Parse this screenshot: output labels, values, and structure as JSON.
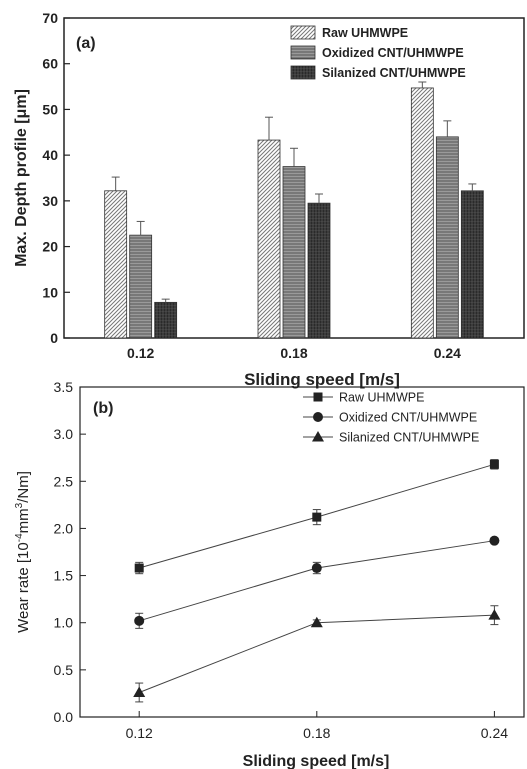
{
  "chart_data": [
    {
      "type": "bar",
      "panel_label": "(a)",
      "title": "",
      "xlabel": "Sliding speed [m/s]",
      "ylabel": "Max. Depth profile [μm]",
      "categories": [
        "0.12",
        "0.18",
        "0.24"
      ],
      "ylim": [
        0,
        70
      ],
      "yticks": [
        0,
        10,
        20,
        30,
        40,
        50,
        60,
        70
      ],
      "legend_position": "top-right",
      "grid": false,
      "series": [
        {
          "name": "Raw UHMWPE",
          "values": [
            32.2,
            43.3,
            54.7
          ],
          "errors": [
            3.0,
            5.0,
            1.3
          ],
          "pattern": "diagonal-hatch"
        },
        {
          "name": "Oxidized CNT/UHMWPE",
          "values": [
            22.5,
            37.5,
            44.0
          ],
          "errors": [
            3.0,
            4.0,
            3.5
          ],
          "pattern": "horizontal-lines"
        },
        {
          "name": "Silanized CNT/UHMWPE",
          "values": [
            7.8,
            29.5,
            32.2
          ],
          "errors": [
            0.7,
            2.0,
            1.5
          ],
          "pattern": "dense-grid"
        }
      ]
    },
    {
      "type": "line",
      "panel_label": "(b)",
      "title": "",
      "xlabel": "Sliding speed [m/s]",
      "ylabel_main": "Wear rate [10",
      "ylabel_exp1": "-4",
      "ylabel_mid": "mm",
      "ylabel_exp2": "3",
      "ylabel_tail": "/Nm]",
      "x": [
        0.12,
        0.18,
        0.24
      ],
      "xtick_labels": [
        "0.12",
        "0.18",
        "0.24"
      ],
      "xlim": [
        0.1,
        0.25
      ],
      "ylim": [
        0.0,
        3.5
      ],
      "yticks": [
        "0.0",
        "0.5",
        "1.0",
        "1.5",
        "2.0",
        "2.5",
        "3.0",
        "3.5"
      ],
      "legend_position": "top-right",
      "grid": false,
      "series": [
        {
          "name": "Raw UHMWPE",
          "marker": "square",
          "values": [
            1.58,
            2.12,
            2.68
          ],
          "errors": [
            0.06,
            0.08,
            0.05
          ]
        },
        {
          "name": "Oxidized CNT/UHMWPE",
          "marker": "circle",
          "values": [
            1.02,
            1.58,
            1.87
          ],
          "errors": [
            0.08,
            0.06,
            0.0
          ]
        },
        {
          "name": "Silanized CNT/UHMWPE",
          "marker": "triangle",
          "values": [
            0.26,
            1.0,
            1.08
          ],
          "errors": [
            0.1,
            0.03,
            0.1
          ]
        }
      ]
    }
  ]
}
